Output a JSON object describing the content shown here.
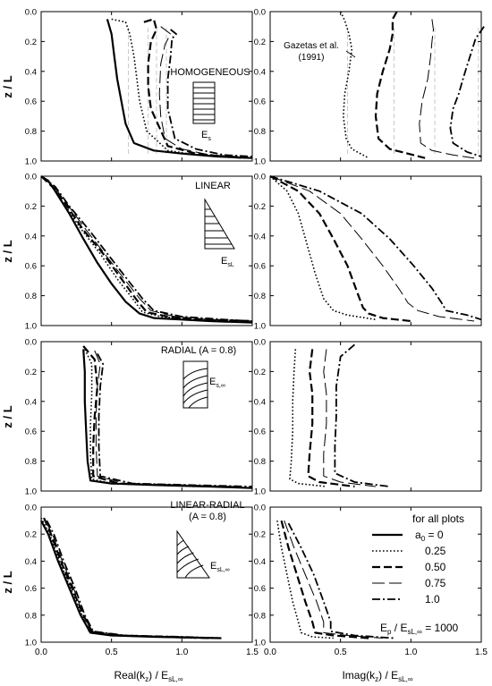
{
  "figure": {
    "y_label": "z / L",
    "x_label_left_main": "Real(k",
    "x_label_left_sub": "z",
    "x_label_left_tail": ") / E",
    "x_label_left_sub2": "sL,∞",
    "x_label_right_main": "Imag(k",
    "x_label_right_sub": "z",
    "x_label_right_tail": ") / E",
    "x_label_right_sub2": "sL,∞",
    "x_ticks": [
      "0.0",
      "0.5",
      "1.0",
      "1.5"
    ],
    "y_ticks": [
      "0.0",
      "0.2",
      "0.4",
      "0.6",
      "0.8",
      "1.0"
    ]
  },
  "panels": {
    "row0": {
      "label": "HOMOGENEOUS",
      "modulus_main": "E",
      "modulus_sub": "s",
      "annotation_line1": "Gazetas et al.",
      "annotation_line2": "(1991)"
    },
    "row1": {
      "label": "LINEAR",
      "modulus_main": "E",
      "modulus_sub": "sL"
    },
    "row2": {
      "label": "RADIAL (A = 0.8)",
      "modulus_main": "E",
      "modulus_sub": "s,∞"
    },
    "row3": {
      "label_line1": "LINEAR-RADIAL",
      "label_line2": "(A = 0.8)",
      "modulus_main": "E",
      "modulus_sub": "sL,∞"
    }
  },
  "legend": {
    "title": "for all plots",
    "header_main": "a",
    "header_sub": "0",
    "header_tail": " = 0",
    "entries": [
      "0.25",
      "0.50",
      "0.75",
      "1.0"
    ],
    "footer_main": "E",
    "footer_sub": "p",
    "footer_mid": " / E",
    "footer_sub2": "sL,∞",
    "footer_tail": " = 1000"
  },
  "chart_data": [
    {
      "type": "line",
      "panel": "HOMOGENEOUS - real",
      "xlim": [
        0,
        1.5
      ],
      "ylim": [
        1.0,
        0.0
      ],
      "y_inverted": true,
      "reference_lines_x": [
        0.62,
        0.76,
        0.82,
        0.89
      ],
      "series": [
        {
          "name": "0",
          "x": [
            0.47,
            0.5,
            0.52,
            0.54,
            0.57,
            0.6,
            0.66,
            0.8,
            1.0,
            1.25,
            1.5
          ],
          "y": [
            0.05,
            0.15,
            0.3,
            0.45,
            0.6,
            0.75,
            0.88,
            0.93,
            0.95,
            0.97,
            0.98
          ]
        },
        {
          "name": "0.25",
          "x": [
            0.5,
            0.6,
            0.63,
            0.66,
            0.68,
            0.7,
            0.75,
            0.9,
            1.1,
            1.3
          ],
          "y": [
            0.05,
            0.07,
            0.15,
            0.3,
            0.45,
            0.6,
            0.8,
            0.93,
            0.96,
            0.97
          ]
        },
        {
          "name": "0.50",
          "x": [
            0.73,
            0.8,
            0.82,
            0.78,
            0.76,
            0.76,
            0.78,
            0.9,
            1.1,
            1.3,
            1.45
          ],
          "y": [
            0.07,
            0.05,
            0.12,
            0.2,
            0.35,
            0.5,
            0.65,
            0.9,
            0.95,
            0.97,
            0.98
          ]
        },
        {
          "name": "0.75",
          "x": [
            0.85,
            0.92,
            0.88,
            0.85,
            0.84,
            0.85,
            0.88,
            1.0,
            1.2,
            1.4
          ],
          "y": [
            0.1,
            0.15,
            0.22,
            0.35,
            0.55,
            0.7,
            0.85,
            0.92,
            0.96,
            0.97
          ]
        },
        {
          "name": "1.0",
          "x": [
            0.92,
            0.96,
            0.93,
            0.92,
            0.9,
            0.9,
            0.95,
            1.1,
            1.3,
            1.5
          ],
          "y": [
            0.12,
            0.15,
            0.18,
            0.3,
            0.45,
            0.65,
            0.85,
            0.92,
            0.96,
            0.97
          ]
        }
      ]
    },
    {
      "type": "line",
      "panel": "HOMOGENEOUS - imag",
      "xlim": [
        0,
        1.5
      ],
      "ylim": [
        1.0,
        0.0
      ],
      "y_inverted": true,
      "reference_lines_x": [
        0.55,
        0.88,
        1.17,
        1.48
      ],
      "series": [
        {
          "name": "0.25",
          "x": [
            0.5,
            0.53,
            0.56,
            0.58,
            0.56,
            0.53,
            0.52,
            0.54,
            0.58,
            0.7
          ],
          "y": [
            0.0,
            0.06,
            0.15,
            0.25,
            0.4,
            0.55,
            0.7,
            0.85,
            0.92,
            0.98
          ]
        },
        {
          "name": "0.50",
          "x": [
            0.9,
            0.87,
            0.87,
            0.85,
            0.8,
            0.76,
            0.75,
            0.77,
            0.85,
            1.1
          ],
          "y": [
            0.0,
            0.05,
            0.15,
            0.25,
            0.4,
            0.55,
            0.7,
            0.85,
            0.92,
            0.98
          ]
        },
        {
          "name": "0.75",
          "x": [
            1.15,
            1.16,
            1.15,
            1.14,
            1.12,
            1.08,
            1.06,
            1.07,
            1.15,
            1.3,
            1.45
          ],
          "y": [
            0.05,
            0.12,
            0.2,
            0.3,
            0.45,
            0.6,
            0.75,
            0.88,
            0.93,
            0.96,
            0.98
          ]
        },
        {
          "name": "1.0",
          "x": [
            1.52,
            1.46,
            1.42,
            1.38,
            1.34,
            1.3,
            1.28,
            1.3,
            1.4,
            1.5
          ],
          "y": [
            0.1,
            0.18,
            0.3,
            0.42,
            0.55,
            0.65,
            0.78,
            0.88,
            0.94,
            0.97
          ]
        }
      ]
    },
    {
      "type": "line",
      "panel": "LINEAR - real",
      "xlim": [
        0,
        1.5
      ],
      "ylim": [
        1.0,
        0.0
      ],
      "y_inverted": true,
      "series": [
        {
          "name": "0",
          "x": [
            0.0,
            0.05,
            0.1,
            0.2,
            0.3,
            0.4,
            0.5,
            0.6,
            0.7,
            0.8,
            1.0,
            1.2,
            1.5
          ],
          "y": [
            0.0,
            0.03,
            0.1,
            0.25,
            0.42,
            0.58,
            0.72,
            0.84,
            0.92,
            0.95,
            0.96,
            0.97,
            0.98
          ]
        },
        {
          "name": "0.25",
          "x": [
            0.0,
            0.08,
            0.15,
            0.28,
            0.42,
            0.55,
            0.65,
            0.72,
            0.85,
            1.1,
            1.4
          ],
          "y": [
            0.0,
            0.06,
            0.17,
            0.35,
            0.52,
            0.7,
            0.82,
            0.91,
            0.94,
            0.96,
            0.97
          ]
        },
        {
          "name": "0.50",
          "x": [
            0.0,
            0.09,
            0.17,
            0.3,
            0.45,
            0.58,
            0.68,
            0.75,
            0.9,
            1.15,
            1.5
          ],
          "y": [
            0.0,
            0.08,
            0.18,
            0.36,
            0.53,
            0.7,
            0.83,
            0.91,
            0.94,
            0.96,
            0.97
          ]
        },
        {
          "name": "0.75",
          "x": [
            0.0,
            0.1,
            0.18,
            0.32,
            0.46,
            0.6,
            0.7,
            0.78,
            0.95,
            1.2,
            1.5
          ],
          "y": [
            0.0,
            0.08,
            0.18,
            0.36,
            0.53,
            0.7,
            0.82,
            0.9,
            0.94,
            0.96,
            0.97
          ]
        },
        {
          "name": "1.0",
          "x": [
            0.0,
            0.1,
            0.2,
            0.34,
            0.48,
            0.62,
            0.72,
            0.8,
            1.0,
            1.3,
            1.5
          ],
          "y": [
            0.0,
            0.07,
            0.2,
            0.36,
            0.53,
            0.7,
            0.82,
            0.9,
            0.94,
            0.96,
            0.97
          ]
        }
      ]
    },
    {
      "type": "line",
      "panel": "LINEAR - imag",
      "xlim": [
        0,
        1.5
      ],
      "ylim": [
        1.0,
        0.0
      ],
      "y_inverted": true,
      "series": [
        {
          "name": "0.25",
          "x": [
            0.0,
            0.12,
            0.2,
            0.26,
            0.32,
            0.38,
            0.45,
            0.55,
            0.75
          ],
          "y": [
            0.0,
            0.1,
            0.25,
            0.45,
            0.65,
            0.82,
            0.9,
            0.93,
            0.96
          ]
        },
        {
          "name": "0.50",
          "x": [
            0.0,
            0.2,
            0.35,
            0.45,
            0.55,
            0.62,
            0.66,
            0.7,
            0.8,
            1.0
          ],
          "y": [
            0.0,
            0.1,
            0.25,
            0.42,
            0.6,
            0.78,
            0.88,
            0.92,
            0.95,
            0.97
          ]
        },
        {
          "name": "0.75",
          "x": [
            0.0,
            0.28,
            0.5,
            0.65,
            0.8,
            0.92,
            0.98,
            1.05,
            1.2,
            1.45
          ],
          "y": [
            0.0,
            0.1,
            0.25,
            0.42,
            0.6,
            0.76,
            0.85,
            0.9,
            0.94,
            0.97
          ]
        },
        {
          "name": "1.0",
          "x": [
            0.0,
            0.35,
            0.65,
            0.85,
            1.02,
            1.15,
            1.22,
            1.25,
            1.4,
            1.5
          ],
          "y": [
            0.0,
            0.1,
            0.25,
            0.42,
            0.6,
            0.75,
            0.85,
            0.9,
            0.93,
            0.96
          ]
        }
      ]
    },
    {
      "type": "line",
      "panel": "RADIAL (A = 0.8) - real",
      "xlim": [
        0,
        1.5
      ],
      "ylim": [
        1.0,
        0.0
      ],
      "y_inverted": true,
      "series": [
        {
          "name": "0",
          "x": [
            0.3,
            0.31,
            0.31,
            0.32,
            0.33,
            0.35,
            0.5,
            0.8,
            1.2,
            1.5
          ],
          "y": [
            0.05,
            0.2,
            0.4,
            0.6,
            0.8,
            0.93,
            0.95,
            0.96,
            0.97,
            0.98
          ]
        },
        {
          "name": "0.25",
          "x": [
            0.3,
            0.36,
            0.36,
            0.35,
            0.35,
            0.36,
            0.5,
            0.8,
            1.1
          ],
          "y": [
            0.03,
            0.15,
            0.35,
            0.55,
            0.75,
            0.92,
            0.95,
            0.96,
            0.97
          ]
        },
        {
          "name": "0.50",
          "x": [
            0.3,
            0.38,
            0.4,
            0.38,
            0.37,
            0.37,
            0.55,
            0.9,
            1.25
          ],
          "y": [
            0.03,
            0.12,
            0.3,
            0.5,
            0.7,
            0.9,
            0.95,
            0.96,
            0.97
          ]
        },
        {
          "name": "0.75",
          "x": [
            0.38,
            0.42,
            0.4,
            0.39,
            0.39,
            0.4,
            0.6,
            1.0,
            1.4
          ],
          "y": [
            0.06,
            0.15,
            0.3,
            0.5,
            0.7,
            0.9,
            0.95,
            0.96,
            0.97
          ]
        },
        {
          "name": "1.0",
          "x": [
            0.4,
            0.44,
            0.42,
            0.41,
            0.41,
            0.42,
            0.65,
            1.05,
            1.5
          ],
          "y": [
            0.08,
            0.15,
            0.3,
            0.5,
            0.7,
            0.9,
            0.95,
            0.96,
            0.97
          ]
        }
      ]
    },
    {
      "type": "line",
      "panel": "RADIAL (A = 0.8) - imag",
      "xlim": [
        0,
        1.5
      ],
      "ylim": [
        1.0,
        0.0
      ],
      "y_inverted": true,
      "series": [
        {
          "name": "0.25",
          "x": [
            0.18,
            0.17,
            0.16,
            0.16,
            0.15,
            0.14,
            0.2,
            0.4
          ],
          "y": [
            0.05,
            0.2,
            0.4,
            0.6,
            0.8,
            0.92,
            0.95,
            0.97
          ]
        },
        {
          "name": "0.50",
          "x": [
            0.3,
            0.28,
            0.3,
            0.3,
            0.28,
            0.27,
            0.35,
            0.6
          ],
          "y": [
            0.05,
            0.2,
            0.35,
            0.55,
            0.75,
            0.9,
            0.94,
            0.97
          ]
        },
        {
          "name": "0.75",
          "x": [
            0.4,
            0.38,
            0.4,
            0.4,
            0.38,
            0.38,
            0.5,
            0.75
          ],
          "y": [
            0.05,
            0.2,
            0.35,
            0.55,
            0.75,
            0.9,
            0.94,
            0.97
          ]
        },
        {
          "name": "1.0",
          "x": [
            0.6,
            0.5,
            0.47,
            0.47,
            0.46,
            0.46,
            0.6,
            0.85
          ],
          "y": [
            0.02,
            0.1,
            0.3,
            0.5,
            0.7,
            0.88,
            0.94,
            0.97
          ]
        }
      ]
    },
    {
      "type": "line",
      "panel": "LINEAR-RADIAL (A = 0.8) - real",
      "xlim": [
        0,
        1.5
      ],
      "ylim": [
        1.0,
        0.0
      ],
      "y_inverted": true,
      "series": [
        {
          "name": "0",
          "x": [
            0.0,
            0.05,
            0.12,
            0.2,
            0.28,
            0.35,
            0.5,
            0.8,
            1.28
          ],
          "y": [
            0.1,
            0.2,
            0.4,
            0.6,
            0.8,
            0.93,
            0.95,
            0.96,
            0.97
          ]
        },
        {
          "name": "0.25",
          "x": [
            0.0,
            0.06,
            0.13,
            0.21,
            0.29,
            0.34,
            0.5,
            0.8,
            1.1
          ],
          "y": [
            0.08,
            0.2,
            0.4,
            0.6,
            0.8,
            0.92,
            0.95,
            0.96,
            0.97
          ]
        },
        {
          "name": "0.50",
          "x": [
            0.02,
            0.07,
            0.14,
            0.22,
            0.3,
            0.36,
            0.55,
            0.9,
            1.2
          ],
          "y": [
            0.08,
            0.2,
            0.4,
            0.6,
            0.8,
            0.92,
            0.95,
            0.96,
            0.97
          ]
        },
        {
          "name": "0.75",
          "x": [
            0.03,
            0.08,
            0.15,
            0.23,
            0.3,
            0.36,
            0.6,
            1.0,
            1.25
          ],
          "y": [
            0.1,
            0.2,
            0.4,
            0.6,
            0.8,
            0.92,
            0.95,
            0.96,
            0.97
          ]
        },
        {
          "name": "1.0",
          "x": [
            0.04,
            0.09,
            0.16,
            0.24,
            0.31,
            0.37,
            0.6,
            1.0,
            1.28
          ],
          "y": [
            0.1,
            0.2,
            0.4,
            0.6,
            0.8,
            0.92,
            0.95,
            0.96,
            0.97
          ]
        }
      ]
    },
    {
      "type": "line",
      "panel": "LINEAR-RADIAL (A = 0.8) - imag",
      "xlim": [
        0,
        1.5
      ],
      "ylim": [
        1.0,
        0.0
      ],
      "y_inverted": true,
      "series": [
        {
          "name": "0.25",
          "x": [
            0.05,
            0.08,
            0.12,
            0.16,
            0.2,
            0.22,
            0.3,
            0.45
          ],
          "y": [
            0.1,
            0.3,
            0.5,
            0.7,
            0.85,
            0.93,
            0.96,
            0.97
          ]
        },
        {
          "name": "0.50",
          "x": [
            0.08,
            0.13,
            0.19,
            0.25,
            0.3,
            0.32,
            0.45,
            0.7
          ],
          "y": [
            0.1,
            0.3,
            0.5,
            0.7,
            0.85,
            0.93,
            0.95,
            0.97
          ]
        },
        {
          "name": "0.75",
          "x": [
            0.1,
            0.17,
            0.25,
            0.33,
            0.38,
            0.38,
            0.55,
            0.8
          ],
          "y": [
            0.1,
            0.3,
            0.5,
            0.7,
            0.85,
            0.93,
            0.95,
            0.97
          ]
        },
        {
          "name": "1.0",
          "x": [
            0.13,
            0.22,
            0.31,
            0.38,
            0.43,
            0.43,
            0.6,
            0.88
          ],
          "y": [
            0.12,
            0.3,
            0.5,
            0.7,
            0.85,
            0.92,
            0.95,
            0.97
          ]
        }
      ]
    }
  ]
}
